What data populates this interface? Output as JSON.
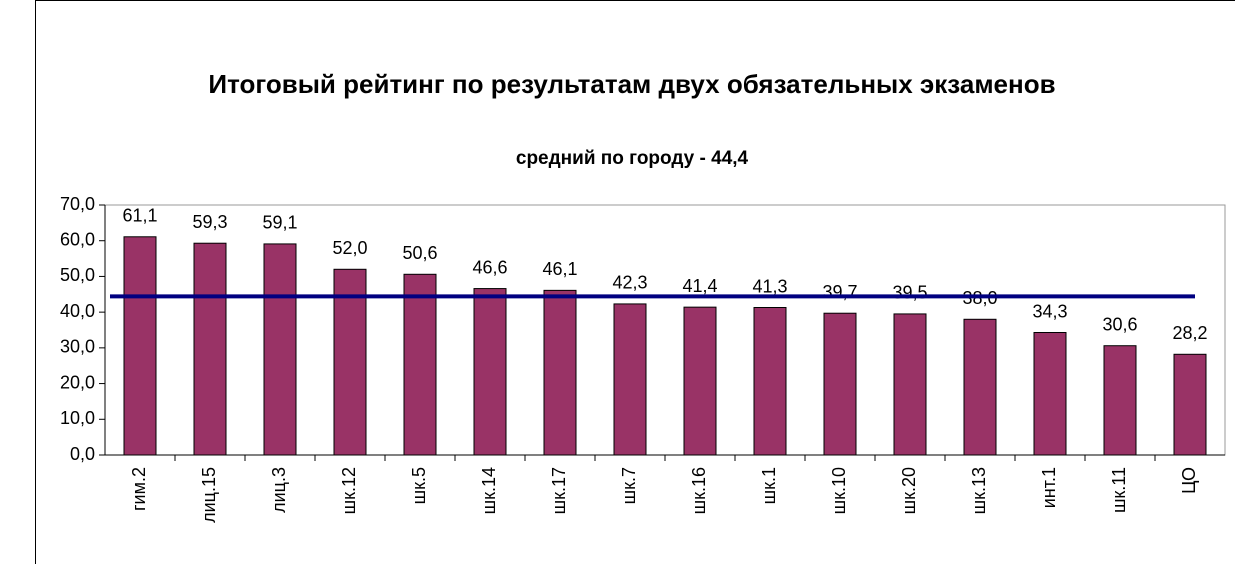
{
  "chart_data": {
    "type": "bar",
    "title": "Итоговый рейтинг по результатам двух обязательных экзаменов",
    "subtitle": "средний по городу - 44,4",
    "categories": [
      "гим.2",
      "лиц.15",
      "лиц.3",
      "шк.12",
      "шк.5",
      "шк.14",
      "шк.17",
      "шк.7",
      "шк.16",
      "шк.1",
      "шк.10",
      "шк.20",
      "шк.13",
      "инт.1",
      "шк.11",
      "ЦО"
    ],
    "values": [
      61.1,
      59.3,
      59.1,
      52.0,
      50.6,
      46.6,
      46.1,
      42.3,
      41.4,
      41.3,
      39.7,
      39.5,
      38.0,
      34.3,
      30.6,
      28.2
    ],
    "value_labels": [
      "61,1",
      "59,3",
      "59,1",
      "52,0",
      "50,6",
      "46,6",
      "46,1",
      "42,3",
      "41,4",
      "41,3",
      "39,7",
      "39,5",
      "38,0",
      "34,3",
      "30,6",
      "28,2"
    ],
    "color": "#993366",
    "average_line": {
      "value": 44.4,
      "color": "#000080"
    },
    "ylim": [
      0,
      70
    ],
    "yticks": [
      {
        "value": 0,
        "label": "0,0"
      },
      {
        "value": 10,
        "label": "10,0"
      },
      {
        "value": 20,
        "label": "20,0"
      },
      {
        "value": 30,
        "label": "30,0"
      },
      {
        "value": 40,
        "label": "40,0"
      },
      {
        "value": 50,
        "label": "50,0"
      },
      {
        "value": 60,
        "label": "60,0"
      },
      {
        "value": 70,
        "label": "70,0"
      }
    ]
  }
}
